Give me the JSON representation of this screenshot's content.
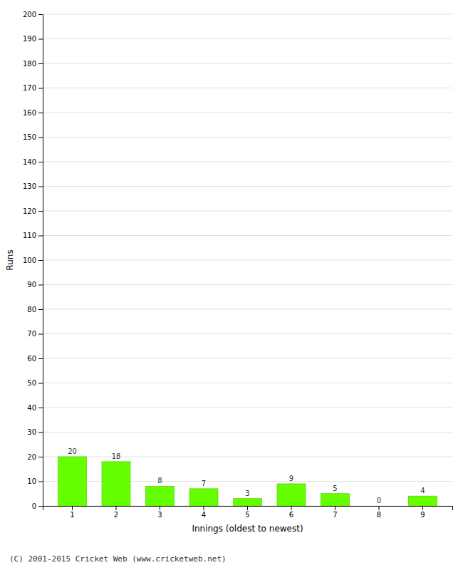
{
  "chart_data": {
    "type": "bar",
    "xlabel": "Innings (oldest to newest)",
    "ylabel": "Runs",
    "categories": [
      "1",
      "2",
      "3",
      "4",
      "5",
      "6",
      "7",
      "8",
      "9"
    ],
    "values": [
      20,
      18,
      8,
      7,
      3,
      9,
      5,
      0,
      4
    ],
    "color": "#66ff00",
    "ylim": [
      0,
      200
    ],
    "yticks": [
      0,
      10,
      20,
      30,
      40,
      50,
      60,
      70,
      80,
      90,
      100,
      110,
      120,
      130,
      140,
      150,
      160,
      170,
      180,
      190,
      200
    ],
    "grid": true,
    "data_labels": true,
    "annotations": [
      "(C) 2001-2015 Cricket Web (www.cricketweb.net)"
    ]
  }
}
